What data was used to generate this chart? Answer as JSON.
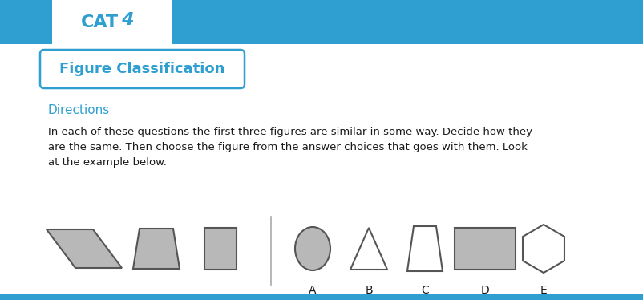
{
  "bg_color": "#ffffff",
  "header_color": "#2E9FD0",
  "cat4_color": "#2E9FD0",
  "title_text": "Figure Classification",
  "title_color": "#2E9FD0",
  "title_box_color": "#2E9FD0",
  "directions_text": "Directions",
  "directions_color": "#2E9FD0",
  "body_text_line1": "In each of these questions the first three figures are similar in some way. Decide how they",
  "body_text_line2": "are the same. Then choose the figure from the answer choices that goes with them. Look",
  "body_text_line3": "at the example below.",
  "body_color": "#1a1a1a",
  "shape_fill_gray": "#b8b8b8",
  "shape_stroke": "#555555",
  "answer_labels": [
    "A",
    "B",
    "C",
    "D",
    "E"
  ],
  "bottom_bar_color": "#2E9FD0"
}
